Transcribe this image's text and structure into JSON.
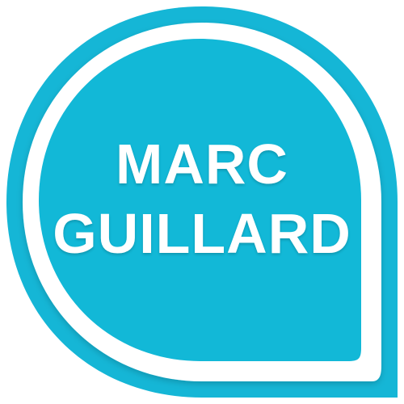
{
  "badge": {
    "name_line1": "MARC",
    "name_line2": "GUILLARD",
    "colors": {
      "ring": "#15b6d6",
      "inner_fill": "#12b8d7",
      "gap": "#ffffff",
      "text": "#ffffff"
    }
  }
}
